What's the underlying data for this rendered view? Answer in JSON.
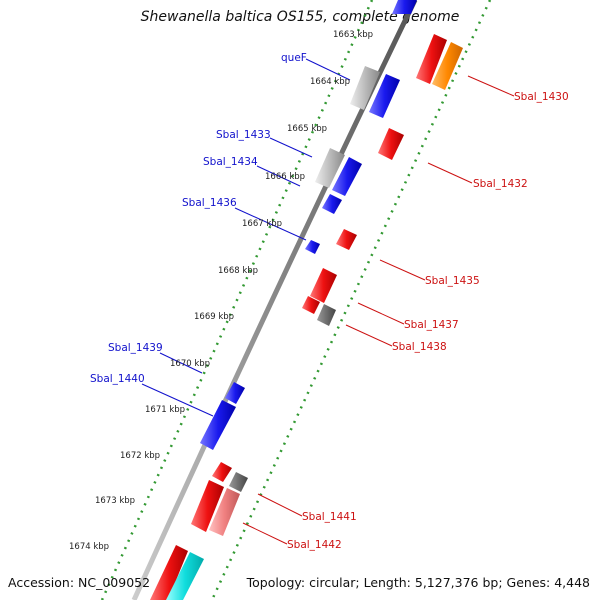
{
  "title": "Shewanella baltica OS155, complete genome",
  "accession": "Accession: NC_009052",
  "summary": "Topology: circular; Length: 5,127,376 bp; Genes: 4,448",
  "colors": {
    "background": "#ffffff",
    "backbone": "#8a8a8a",
    "tick_dots": "#339933",
    "forward_label": "#1111cc",
    "reverse_label": "#cc1111",
    "gene_red": "#ee1111",
    "gene_blue": "#1a1aee",
    "gene_grey": "#b8b8b8",
    "gene_dark_grey": "#6e6e6e",
    "gene_orange": "#ff8800",
    "gene_pink": "#f08080",
    "gene_cyan": "#11dddd"
  },
  "kbp_labels": [
    "1663 kbp",
    "1664 kbp",
    "1665 kbp",
    "1666 kbp",
    "1667 kbp",
    "1668 kbp",
    "1669 kbp",
    "1670 kbp",
    "1671 kbp",
    "1672 kbp",
    "1673 kbp",
    "1674 kbp"
  ],
  "gene_labels": [
    {
      "name": "Sbal_1430",
      "strand": "reverse"
    },
    {
      "name": "queF",
      "strand": "forward"
    },
    {
      "name": "Sbal_1433",
      "strand": "forward"
    },
    {
      "name": "Sbal_1432",
      "strand": "reverse"
    },
    {
      "name": "Sbal_1434",
      "strand": "forward"
    },
    {
      "name": "Sbal_1436",
      "strand": "forward"
    },
    {
      "name": "Sbal_1435",
      "strand": "reverse"
    },
    {
      "name": "Sbal_1437",
      "strand": "reverse"
    },
    {
      "name": "Sbal_1438",
      "strand": "reverse"
    },
    {
      "name": "Sbal_1439",
      "strand": "forward"
    },
    {
      "name": "Sbal_1440",
      "strand": "forward"
    },
    {
      "name": "Sbal_1441",
      "strand": "reverse"
    },
    {
      "name": "Sbal_1442",
      "strand": "reverse"
    }
  ]
}
